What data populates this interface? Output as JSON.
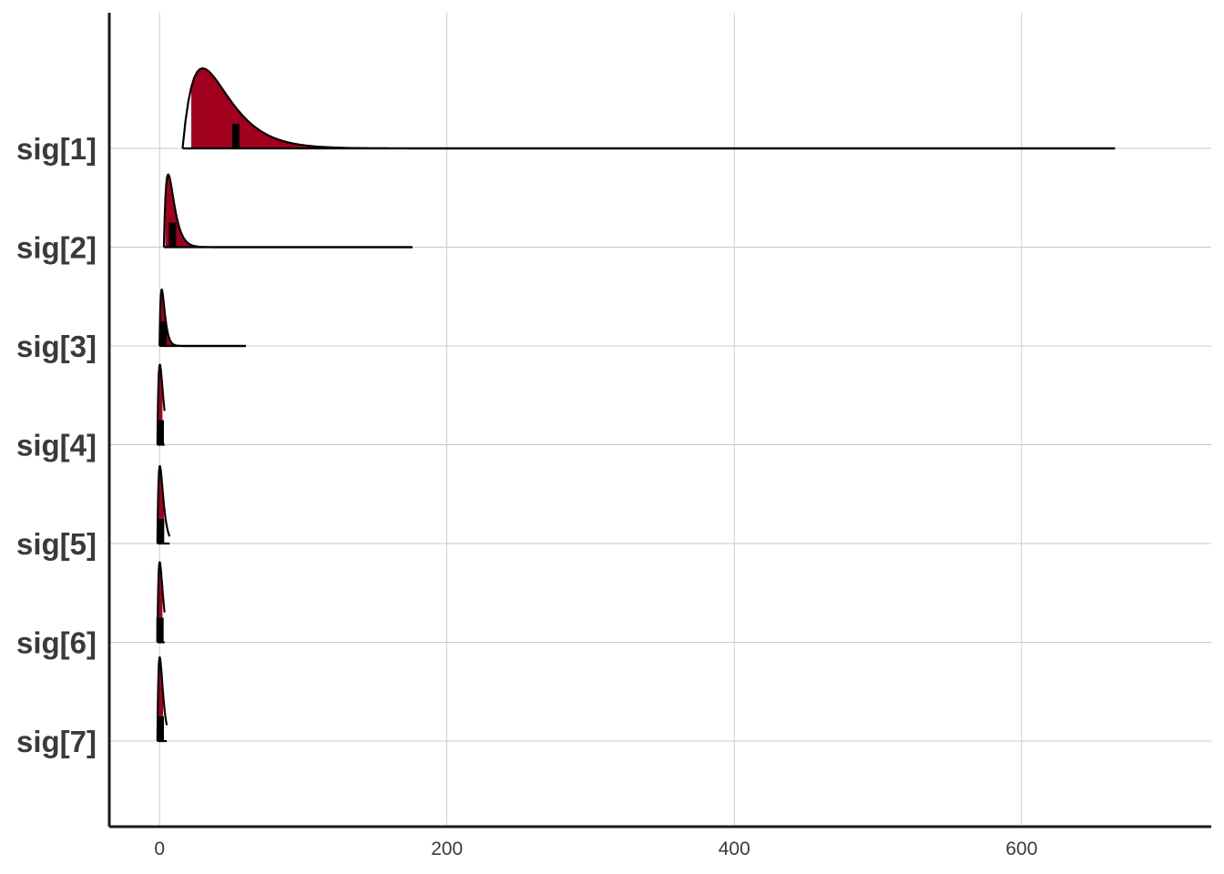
{
  "chart_data": {
    "type": "area",
    "title": "",
    "xlabel": "",
    "ylabel": "",
    "xlim": [
      -35,
      732
    ],
    "xticks": [
      0,
      200,
      400,
      600
    ],
    "grid": true,
    "fill_color": "#A1001E",
    "line_color": "#000000",
    "series": [
      {
        "name": "sig[1]",
        "min": 16,
        "max": 665,
        "inner": [
          22,
          225
        ],
        "median": 53,
        "mode": 30
      },
      {
        "name": "sig[2]",
        "min": 3,
        "max": 176,
        "inner": [
          4,
          40
        ],
        "median": 9,
        "mode": 6
      },
      {
        "name": "sig[3]",
        "min": 0,
        "max": 60,
        "inner": [
          0.5,
          15
        ],
        "median": 2.5,
        "mode": 1.5
      },
      {
        "name": "sig[4]",
        "min": -1.5,
        "max": 3.5,
        "inner": [
          -1,
          2
        ],
        "median": 0.5,
        "mode": 0.2
      },
      {
        "name": "sig[5]",
        "min": -1.5,
        "max": 7,
        "inner": [
          -1,
          3
        ],
        "median": 0.7,
        "mode": 0.2
      },
      {
        "name": "sig[6]",
        "min": -1.5,
        "max": 3.5,
        "inner": [
          -1,
          2
        ],
        "median": 0.3,
        "mode": 0.1
      },
      {
        "name": "sig[7]",
        "min": -1.5,
        "max": 5,
        "inner": [
          -1,
          2.5
        ],
        "median": 0.5,
        "mode": 0.1
      }
    ]
  }
}
